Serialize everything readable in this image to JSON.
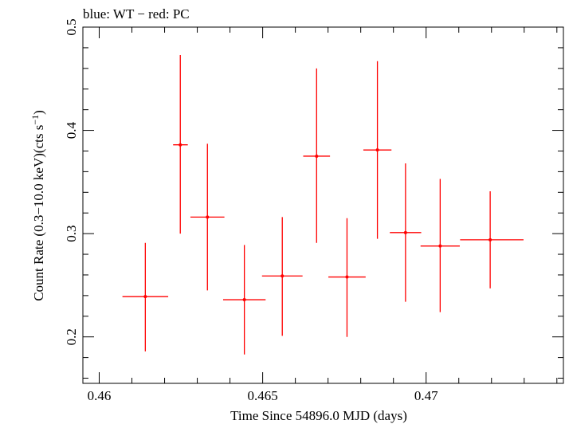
{
  "chart_data": {
    "type": "scatter",
    "title": "blue: WT − red: PC",
    "xlabel": "Time Since 54896.0 MJD (days)",
    "ylabel_main": "Count Rate (0.3−10.0 keV)(cts s",
    "ylabel_sup": "−1",
    "ylabel_close": ")",
    "xlim": [
      0.4595,
      0.4742
    ],
    "ylim": [
      0.155,
      0.5
    ],
    "xticks": [
      {
        "value": 0.46,
        "label": "0.46"
      },
      {
        "value": 0.465,
        "label": "0.465"
      },
      {
        "value": 0.47,
        "label": "0.47"
      }
    ],
    "yticks": [
      {
        "value": 0.2,
        "label": "0.2"
      },
      {
        "value": 0.3,
        "label": "0.3"
      },
      {
        "value": 0.4,
        "label": "0.4"
      },
      {
        "value": 0.5,
        "label": "0.5"
      }
    ],
    "grid": false,
    "series": [
      {
        "color": "#ff0000",
        "points": [
          {
            "x": 0.46141,
            "xlo": 0.46071,
            "xhi": 0.46211,
            "y": 0.239,
            "ylo": 0.186,
            "yhi": 0.291
          },
          {
            "x": 0.46248,
            "xlo": 0.46226,
            "xhi": 0.46271,
            "y": 0.386,
            "ylo": 0.3,
            "yhi": 0.473
          },
          {
            "x": 0.46331,
            "xlo": 0.46279,
            "xhi": 0.46383,
            "y": 0.316,
            "ylo": 0.245,
            "yhi": 0.387
          },
          {
            "x": 0.46444,
            "xlo": 0.46379,
            "xhi": 0.46509,
            "y": 0.236,
            "ylo": 0.183,
            "yhi": 0.289
          },
          {
            "x": 0.4656,
            "xlo": 0.46498,
            "xhi": 0.46622,
            "y": 0.259,
            "ylo": 0.201,
            "yhi": 0.316
          },
          {
            "x": 0.46665,
            "xlo": 0.46624,
            "xhi": 0.46706,
            "y": 0.375,
            "ylo": 0.291,
            "yhi": 0.46
          },
          {
            "x": 0.46758,
            "xlo": 0.46701,
            "xhi": 0.46815,
            "y": 0.258,
            "ylo": 0.2,
            "yhi": 0.315
          },
          {
            "x": 0.46851,
            "xlo": 0.46808,
            "xhi": 0.46894,
            "y": 0.381,
            "ylo": 0.295,
            "yhi": 0.467
          },
          {
            "x": 0.46937,
            "xlo": 0.46889,
            "xhi": 0.46985,
            "y": 0.301,
            "ylo": 0.234,
            "yhi": 0.368
          },
          {
            "x": 0.47043,
            "xlo": 0.46983,
            "xhi": 0.47103,
            "y": 0.288,
            "ylo": 0.224,
            "yhi": 0.353
          },
          {
            "x": 0.47196,
            "xlo": 0.47104,
            "xhi": 0.47298,
            "y": 0.294,
            "ylo": 0.247,
            "yhi": 0.341
          }
        ]
      }
    ]
  }
}
